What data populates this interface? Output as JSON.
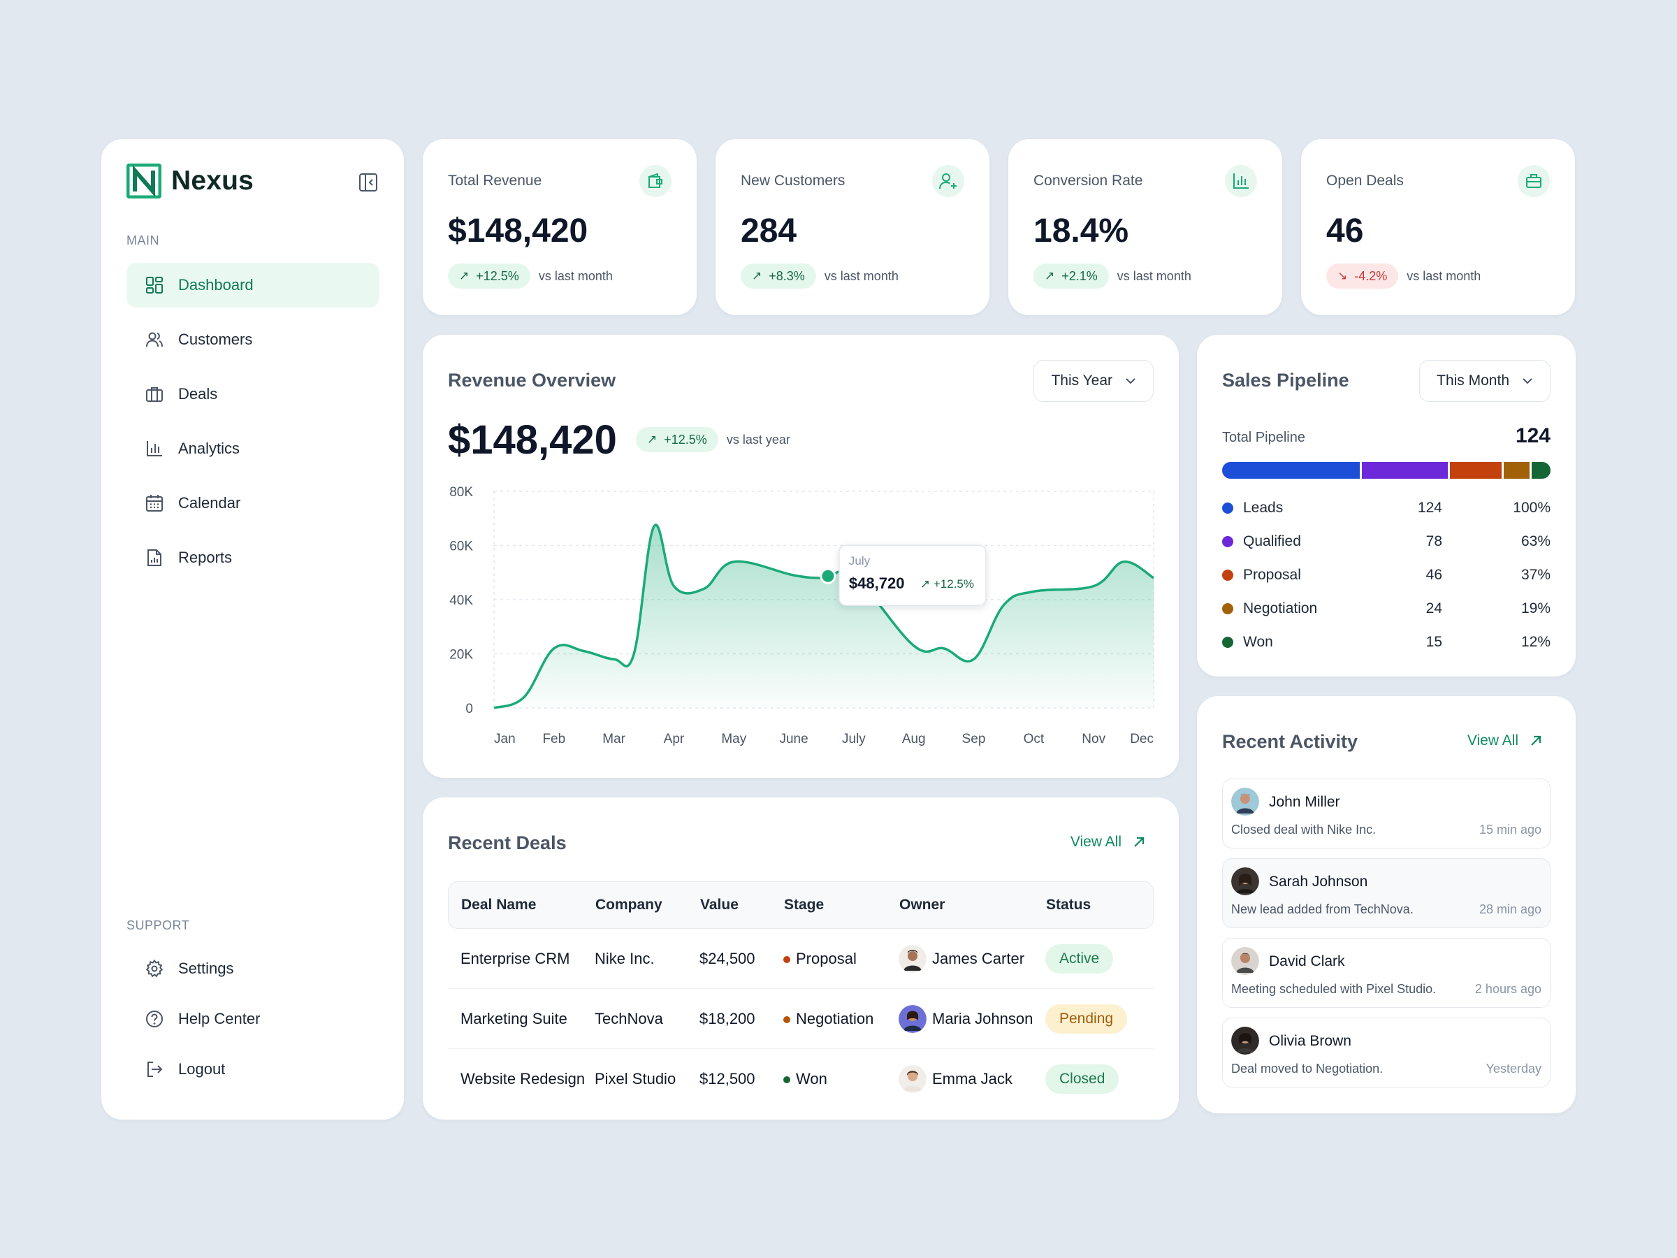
{
  "brand": {
    "name": "Nexus"
  },
  "sidebar": {
    "main_label": "MAIN",
    "support_label": "SUPPORT",
    "main_items": [
      {
        "label": "Dashboard",
        "icon": "dashboard-icon",
        "active": true
      },
      {
        "label": "Customers",
        "icon": "users-icon"
      },
      {
        "label": "Deals",
        "icon": "briefcase-icon"
      },
      {
        "label": "Analytics",
        "icon": "bar-chart-icon"
      },
      {
        "label": "Calendar",
        "icon": "calendar-icon"
      },
      {
        "label": "Reports",
        "icon": "report-icon"
      }
    ],
    "support_items": [
      {
        "label": "Settings",
        "icon": "gear-icon"
      },
      {
        "label": "Help Center",
        "icon": "help-icon"
      },
      {
        "label": "Logout",
        "icon": "logout-icon"
      }
    ]
  },
  "kpis": [
    {
      "title": "Total Revenue",
      "value": "$148,420",
      "change": "+12.5%",
      "direction": "up",
      "note": "vs last month",
      "icon": "wallet-icon"
    },
    {
      "title": "New Customers",
      "value": "284",
      "change": "+8.3%",
      "direction": "up",
      "note": "vs last month",
      "icon": "user-plus-icon"
    },
    {
      "title": "Conversion Rate",
      "value": "18.4%",
      "change": "+2.1%",
      "direction": "up",
      "note": "vs last month",
      "icon": "bar-chart-icon"
    },
    {
      "title": "Open Deals",
      "value": "46",
      "change": "-4.2%",
      "direction": "down",
      "note": "vs last month",
      "icon": "briefcase-icon"
    }
  ],
  "revenue": {
    "title": "Revenue Overview",
    "period": "This Year",
    "value": "$148,420",
    "change": "+12.5%",
    "note": "vs last year",
    "tooltip": {
      "month": "July",
      "value": "$48,720",
      "change": "+12.5%"
    }
  },
  "chart_data": {
    "type": "area",
    "title": "Revenue Overview",
    "x": [
      "Jan",
      "Feb",
      "Mar",
      "Apr",
      "May",
      "June",
      "July",
      "Aug",
      "Sep",
      "Oct",
      "Nov",
      "Dec"
    ],
    "y_ticks": [
      "80K",
      "60K",
      "40K",
      "20K",
      "0"
    ],
    "ylim": [
      0,
      80000
    ],
    "series": [
      {
        "points": [
          [
            "Jan",
            0
          ],
          [
            "Jan",
            4000
          ],
          [
            "Feb",
            22000
          ],
          [
            "Feb",
            21000
          ],
          [
            "Mar",
            18000
          ],
          [
            "Mar",
            20000
          ],
          [
            "Mar",
            67000
          ],
          [
            "Apr",
            45000
          ],
          [
            "Apr",
            44000
          ],
          [
            "May",
            54000
          ],
          [
            "June",
            49000
          ],
          [
            "June",
            48000
          ],
          [
            "July",
            48720
          ],
          [
            "Aug",
            23000
          ],
          [
            "Aug",
            22000
          ],
          [
            "Sep",
            18000
          ],
          [
            "Sep",
            38000
          ],
          [
            "Oct",
            43000
          ],
          [
            "Nov",
            45000
          ],
          [
            "Nov",
            54000
          ],
          [
            "Dec",
            48000
          ]
        ]
      }
    ],
    "highlight": {
      "x": "July",
      "y": 48720
    },
    "grid": true,
    "color": "#1aaa78"
  },
  "deals": {
    "title": "Recent Deals",
    "view_all": "View All",
    "columns": [
      "Deal Name",
      "Company",
      "Value",
      "Stage",
      "Owner",
      "Status"
    ],
    "rows": [
      {
        "name": "Enterprise CRM",
        "company": "Nike Inc.",
        "value": "$24,500",
        "stage": "Proposal",
        "stage_color": "#c2410c",
        "owner": "James Carter",
        "status": "Active",
        "status_bg": "#e2f6ea",
        "status_fg": "#1c7a4c"
      },
      {
        "name": "Marketing Suite",
        "company": "TechNova",
        "value": "$18,200",
        "stage": "Negotiation",
        "stage_color": "#b45309",
        "owner": "Maria Johnson",
        "status": "Pending",
        "status_bg": "#fdf0cf",
        "status_fg": "#a15c0b"
      },
      {
        "name": "Website Redesign",
        "company": "Pixel Studio",
        "value": "$12,500",
        "stage": "Won",
        "stage_color": "#166534",
        "owner": "Emma Jack",
        "status": "Closed",
        "status_bg": "#e2f6ea",
        "status_fg": "#1c7a4c"
      }
    ]
  },
  "pipeline": {
    "title": "Sales Pipeline",
    "period": "This Month",
    "total_label": "Total Pipeline",
    "total": "124",
    "stages": [
      {
        "name": "Leads",
        "count": "124",
        "pct": "100%",
        "color": "#1d4ed8",
        "share": 0.37
      },
      {
        "name": "Qualified",
        "count": "78",
        "pct": "63%",
        "color": "#6d28d9",
        "share": 0.23
      },
      {
        "name": "Proposal",
        "count": "46",
        "pct": "37%",
        "color": "#c2410c",
        "share": 0.14
      },
      {
        "name": "Negotiation",
        "count": "24",
        "pct": "19%",
        "color": "#a16207",
        "share": 0.07
      },
      {
        "name": "Won",
        "count": "15",
        "pct": "12%",
        "color": "#166534",
        "share": 0.05
      }
    ]
  },
  "activity": {
    "title": "Recent Activity",
    "view_all": "View All",
    "items": [
      {
        "name": "John Miller",
        "desc": "Closed deal with Nike Inc.",
        "time": "15 min ago"
      },
      {
        "name": "Sarah Johnson",
        "desc": "New lead added from TechNova.",
        "time": "28 min ago"
      },
      {
        "name": "David Clark",
        "desc": "Meeting scheduled with Pixel Studio.",
        "time": "2 hours ago"
      },
      {
        "name": "Olivia Brown",
        "desc": "Deal moved to Negotiation.",
        "time": "Yesterday"
      }
    ]
  },
  "colors": {
    "accent": "#1aaa78",
    "accent_dark": "#0f7a55",
    "background": "#e1e8f0"
  }
}
